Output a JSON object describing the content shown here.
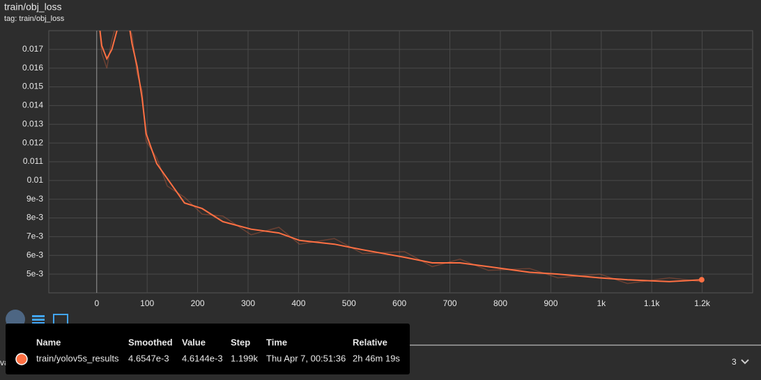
{
  "chart_data": {
    "type": "line",
    "title": "train/obj_loss",
    "subtitle": "tag: train/obj_loss",
    "x": [
      0,
      10,
      20,
      30,
      45,
      60,
      70,
      80,
      90,
      98,
      119,
      140,
      174,
      209,
      250,
      306,
      361,
      402,
      471,
      527,
      610,
      665,
      720,
      776,
      858,
      914,
      997,
      1052,
      1135,
      1199
    ],
    "series": [
      {
        "name": "train/yolov5s_results",
        "color": "#ff7043",
        "values": [
          0.0195,
          0.0172,
          0.0165,
          0.017,
          0.0185,
          0.019,
          0.0173,
          0.0161,
          0.0144,
          0.0125,
          0.0109,
          0.0101,
          0.0088,
          0.0085,
          0.0078,
          0.0074,
          0.0072,
          0.0068,
          0.0066,
          0.0063,
          0.0059,
          0.0056,
          0.0056,
          0.0054,
          0.0051,
          0.005,
          0.0048,
          0.0047,
          0.0046,
          0.0047
        ],
        "raw_values": [
          0.0198,
          0.0168,
          0.016,
          0.0175,
          0.0189,
          0.0184,
          0.0178,
          0.0157,
          0.0148,
          0.0121,
          0.0112,
          0.0097,
          0.0091,
          0.0082,
          0.0081,
          0.0071,
          0.0075,
          0.0066,
          0.0069,
          0.0061,
          0.0062,
          0.0054,
          0.0058,
          0.0052,
          0.0053,
          0.0048,
          0.005,
          0.0045,
          0.0048,
          0.0046
        ]
      }
    ],
    "xlim": [
      -95,
      1300
    ],
    "ylim": [
      0.004,
      0.018
    ],
    "xticks": [
      0,
      100,
      200,
      300,
      400,
      500,
      600,
      700,
      800,
      900,
      {
        "value": 1000,
        "label": "1k"
      },
      {
        "value": 1100,
        "label": "1.1k"
      },
      {
        "value": 1200,
        "label": "1.2k"
      }
    ],
    "yticks": [
      {
        "value": 0.005,
        "label": "5e-3"
      },
      {
        "value": 0.006,
        "label": "6e-3"
      },
      {
        "value": 0.007,
        "label": "7e-3"
      },
      {
        "value": 0.008,
        "label": "8e-3"
      },
      {
        "value": 0.009,
        "label": "9e-3"
      },
      0.01,
      0.011,
      0.012,
      0.013,
      0.014,
      0.015,
      0.016,
      0.017
    ],
    "grid": true,
    "tooltip": {
      "columns": [
        "Name",
        "Smoothed",
        "Value",
        "Step",
        "Time",
        "Relative"
      ],
      "row": [
        "train/yolov5s_results",
        "4.6547e-3",
        "4.6144e-3",
        "1.199k",
        "Thu Apr 7, 00:51:36",
        "2h 46m 19s"
      ]
    },
    "pager": "3",
    "footer_label": "va"
  }
}
